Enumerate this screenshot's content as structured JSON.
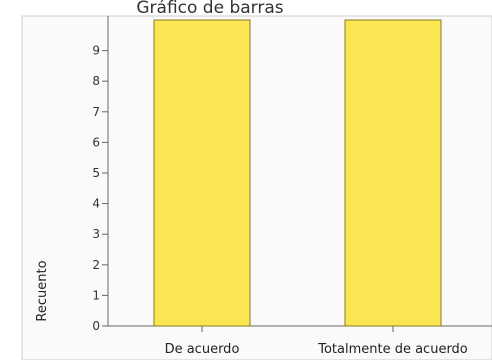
{
  "chart_data": {
    "type": "bar",
    "title": "Gráfico de barras",
    "xlabel": "",
    "ylabel": "Recuento",
    "categories": [
      "De acuerdo",
      "Totalmente de acuerdo"
    ],
    "values": [
      10,
      10
    ],
    "ylim": [
      0,
      10
    ],
    "y_ticks": [
      0,
      1,
      2,
      3,
      4,
      5,
      6,
      7,
      8,
      9
    ],
    "grid": false,
    "colors": {
      "bar_fill": "#fce553",
      "bar_stroke": "#8a7a1e",
      "plot_background": "#fafafa",
      "frame": "#cfcfcf",
      "axis_line": "#666666"
    }
  }
}
